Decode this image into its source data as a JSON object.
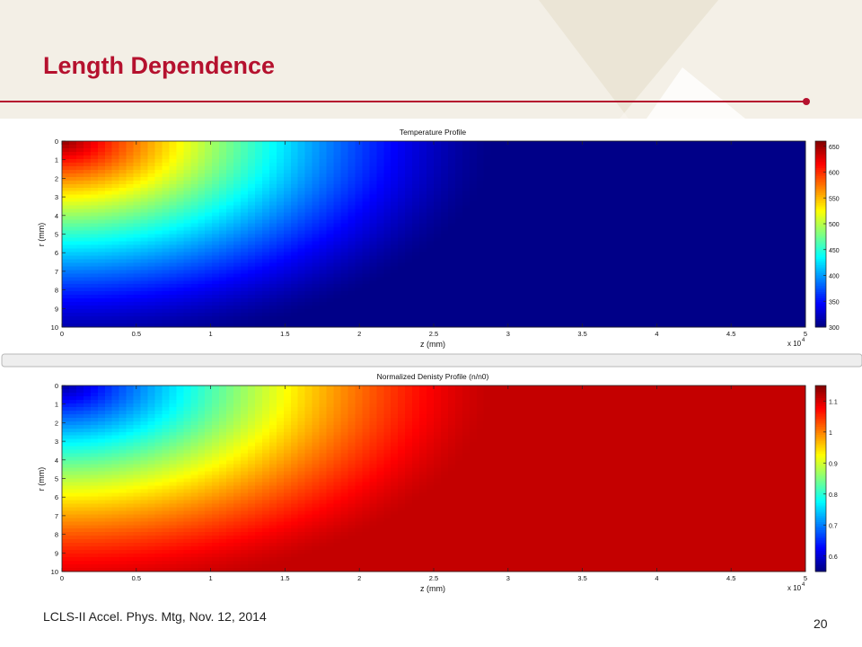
{
  "slide": {
    "title": "Length Dependence",
    "footer": "LCLS-II Accel. Phys. Mtg, Nov. 12, 2014",
    "page_number": "20",
    "accent_color": "#b5112e"
  },
  "chart_data": [
    {
      "type": "heatmap",
      "title": "Temperature Profile",
      "xlabel": "z (mm)",
      "ylabel": "r (mm)",
      "x_exponent_label": "x 10",
      "x_exponent": "4",
      "x_ticks": [
        "0",
        "0.5",
        "1",
        "1.5",
        "2",
        "2.5",
        "3",
        "3.5",
        "4",
        "4.5",
        "5"
      ],
      "y_ticks": [
        "0",
        "1",
        "2",
        "3",
        "4",
        "5",
        "6",
        "7",
        "8",
        "9",
        "10"
      ],
      "xlim": [
        0,
        5
      ],
      "ylim": [
        10,
        0
      ],
      "colormap": "jet",
      "colorbar": {
        "range": [
          300,
          660
        ],
        "ticks": [
          {
            "value": 300,
            "label": "300"
          },
          {
            "value": 350,
            "label": "350"
          },
          {
            "value": 400,
            "label": "400"
          },
          {
            "value": 450,
            "label": "450"
          },
          {
            "value": 500,
            "label": "500"
          },
          {
            "value": 550,
            "label": "550"
          },
          {
            "value": 600,
            "label": "600"
          },
          {
            "value": 650,
            "label": "650"
          }
        ]
      },
      "field_description": "hot at z=0, r=0; decays along z and r"
    },
    {
      "type": "heatmap",
      "title": "Normalized Denisty Profile (n/n0)",
      "xlabel": "z (mm)",
      "ylabel": "r (mm)",
      "x_exponent_label": "x 10",
      "x_exponent": "4",
      "x_ticks": [
        "0",
        "0.5",
        "1",
        "1.5",
        "2",
        "2.5",
        "3",
        "3.5",
        "4",
        "4.5",
        "5"
      ],
      "y_ticks": [
        "0",
        "1",
        "2",
        "3",
        "4",
        "5",
        "6",
        "7",
        "8",
        "9",
        "10"
      ],
      "xlim": [
        0,
        5
      ],
      "ylim": [
        10,
        0
      ],
      "colormap": "jet",
      "colorbar": {
        "range": [
          0.55,
          1.15
        ],
        "ticks": [
          {
            "value": 0.6,
            "label": "0.6"
          },
          {
            "value": 0.7,
            "label": "0.7"
          },
          {
            "value": 0.8,
            "label": "0.8"
          },
          {
            "value": 0.9,
            "label": "0.9"
          },
          {
            "value": 1.0,
            "label": "1"
          },
          {
            "value": 1.1,
            "label": "1.1"
          }
        ]
      },
      "field_description": "low at z=0, r=0; rises to maximum along z and r"
    }
  ]
}
